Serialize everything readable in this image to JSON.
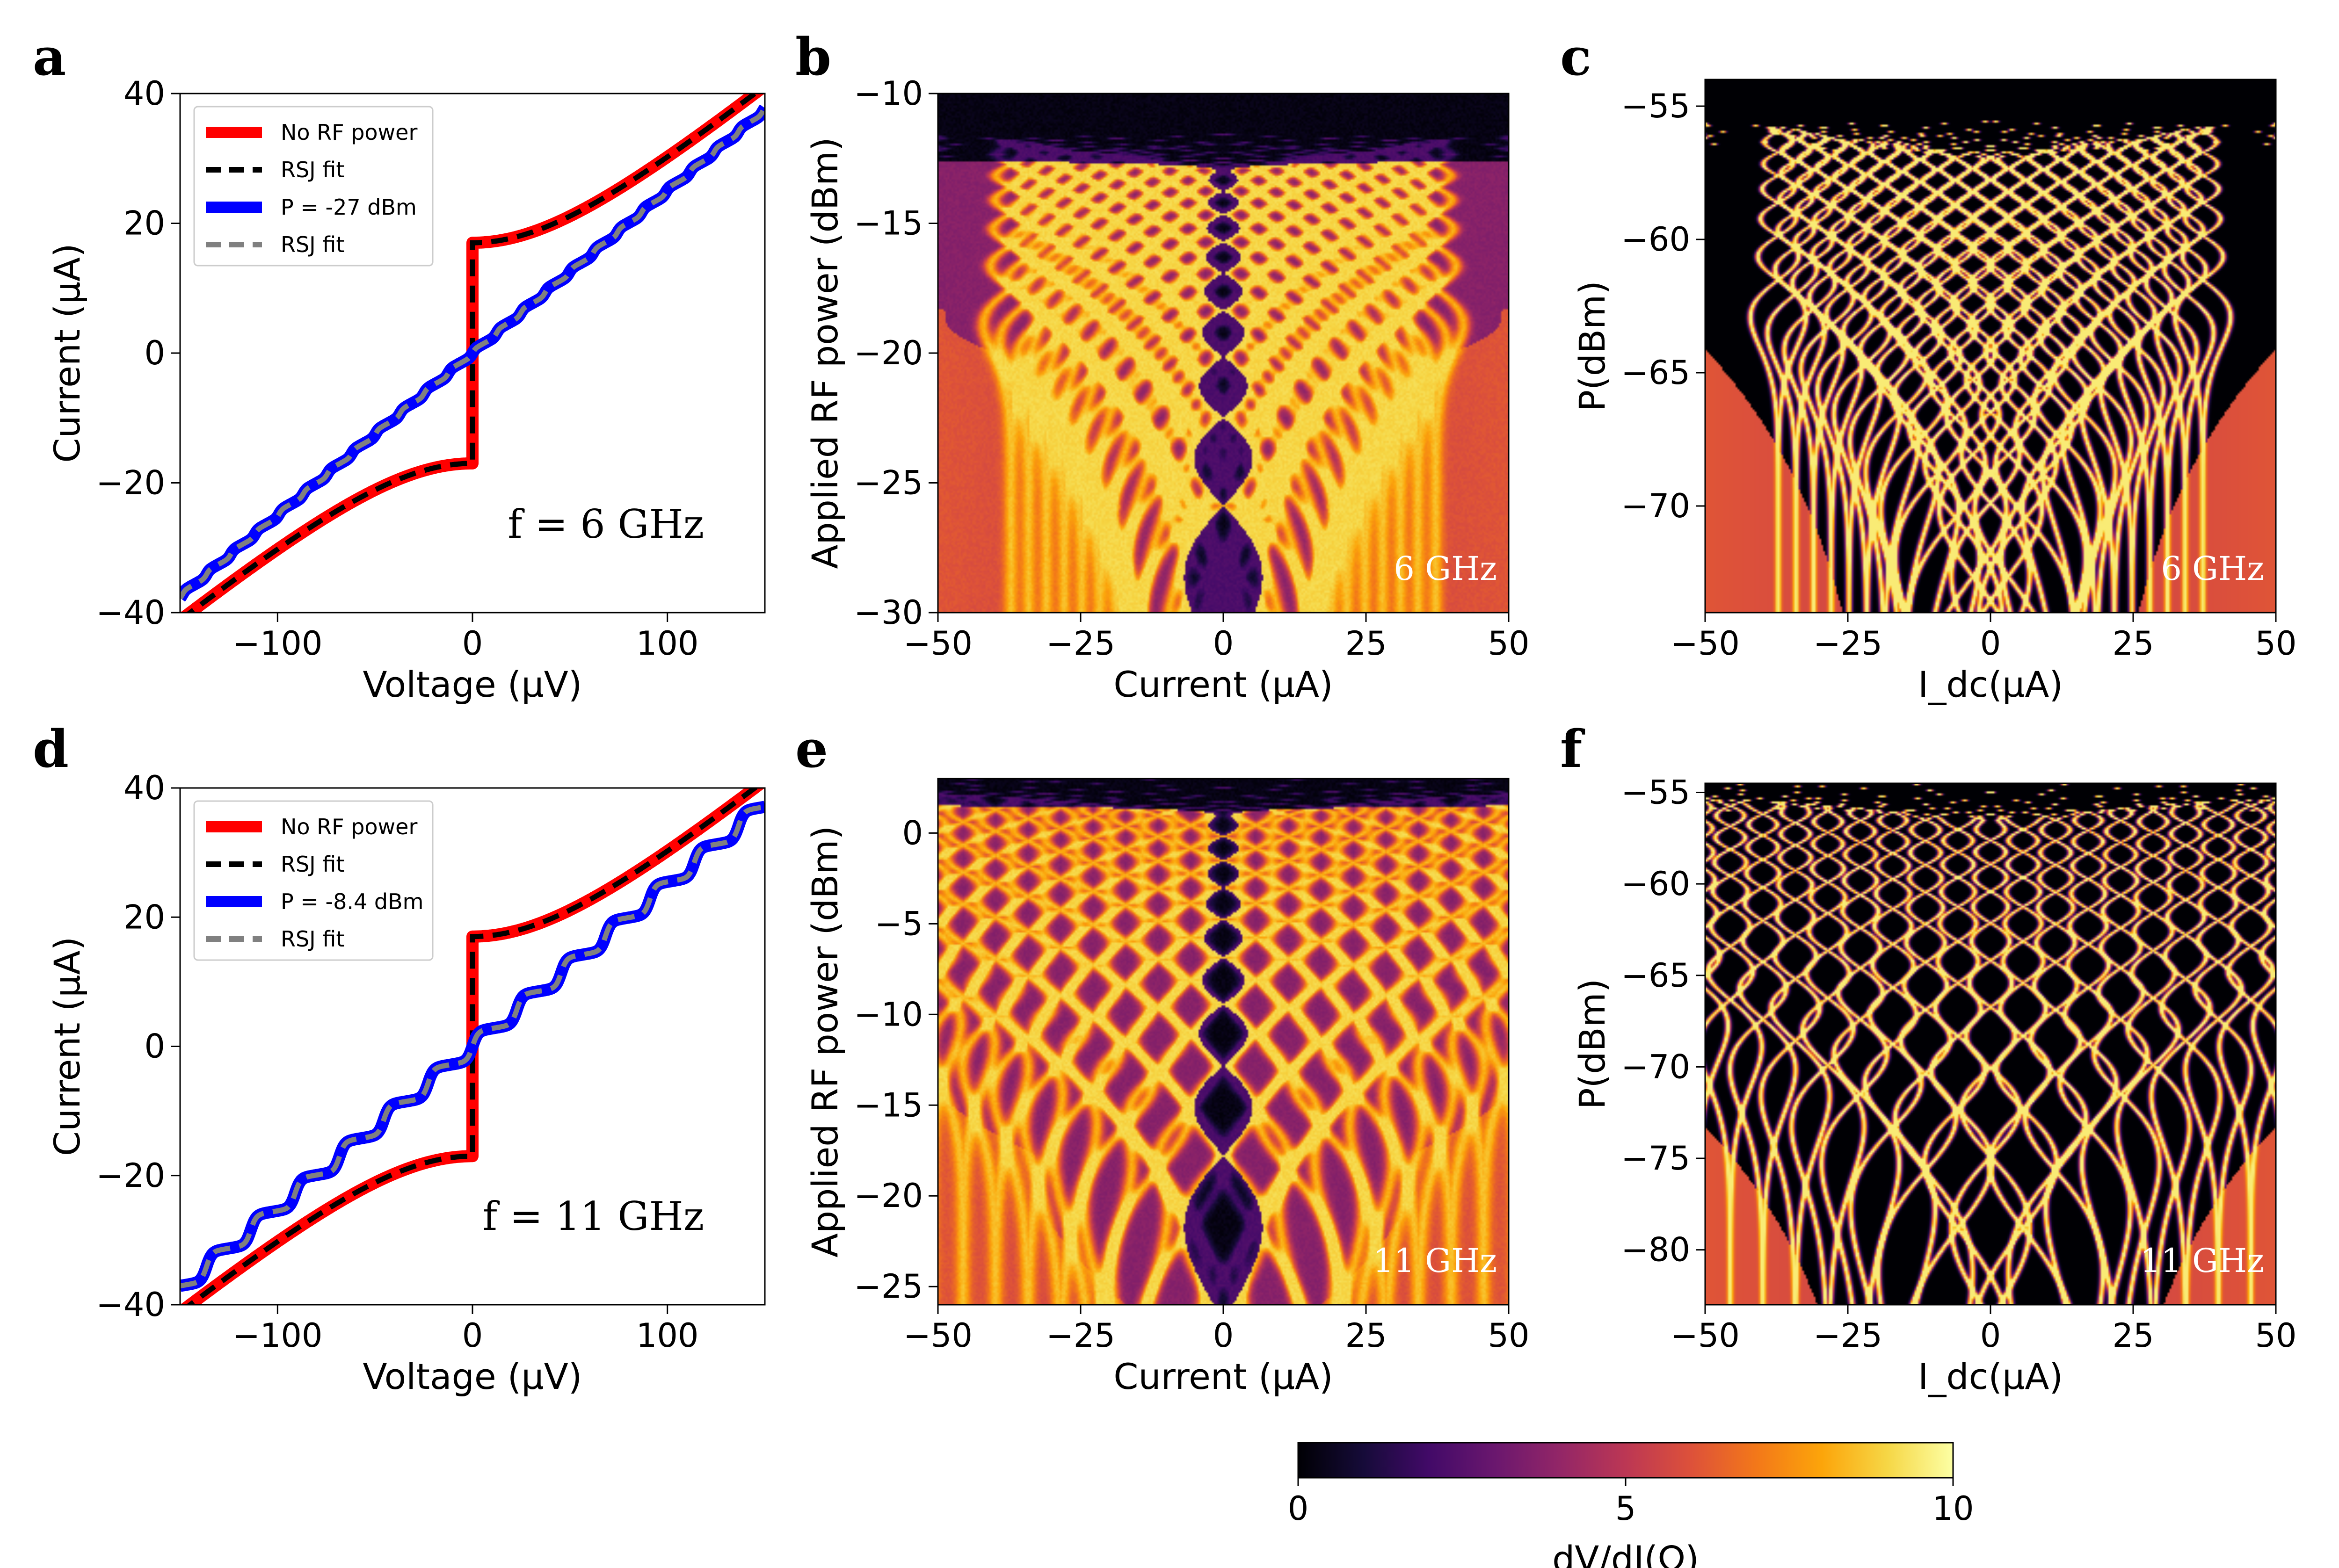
{
  "colorbar": {
    "label": "dV/dI(Ω)",
    "min": 0,
    "max": 10,
    "ticks": [
      "0",
      "5",
      "10"
    ]
  },
  "panels": [
    {
      "letter": "a",
      "type": "line",
      "xlabel": "Voltage (μV)",
      "ylabel": "Current (μA)",
      "xlim": [
        -150,
        150
      ],
      "ylim": [
        -40,
        40
      ],
      "xticks": [
        "−100",
        "0",
        "100"
      ],
      "yticks": [
        "40",
        "20",
        "0",
        "−20",
        "−40"
      ],
      "annotation": "f = 6 GHz",
      "legend": [
        "No RF power",
        "RSJ fit",
        "P = -27 dBm",
        "RSJ fit"
      ],
      "ic": 17,
      "rn": 4.0,
      "steps": "6GHz"
    },
    {
      "letter": "b",
      "type": "heatmap",
      "freq": "6 GHz",
      "xlabel": "Current (μA)",
      "ylabel": "Applied RF power (dBm)",
      "xlim": [
        -50,
        50
      ],
      "ylim": [
        -30,
        -10
      ],
      "xticks": [
        "−50",
        "−25",
        "0",
        "25",
        "50"
      ],
      "yticks": [
        "−10",
        "−15",
        "−20",
        "−25",
        "−30"
      ]
    },
    {
      "letter": "c",
      "type": "heatmap",
      "freq": "6 GHz",
      "xlabel": "I_dc(μA)",
      "ylabel": "P(dBm)",
      "xlim": [
        -50,
        50
      ],
      "ylim": [
        -74,
        -54
      ],
      "xticks": [
        "−50",
        "−25",
        "0",
        "25",
        "50"
      ],
      "yticks": [
        "−55",
        "−60",
        "−65",
        "−70"
      ]
    },
    {
      "letter": "d",
      "type": "line",
      "xlabel": "Voltage (μV)",
      "ylabel": "Current (μA)",
      "xlim": [
        -150,
        150
      ],
      "ylim": [
        -40,
        40
      ],
      "xticks": [
        "−100",
        "0",
        "100"
      ],
      "yticks": [
        "40",
        "20",
        "0",
        "−20",
        "−40"
      ],
      "annotation": "f = 11 GHz",
      "legend": [
        "No RF power",
        "RSJ fit",
        "P = -8.4 dBm",
        "RSJ fit"
      ],
      "ic": 17,
      "rn": 4.0,
      "steps": "11GHz"
    },
    {
      "letter": "e",
      "type": "heatmap",
      "freq": "11 GHz",
      "xlabel": "Current (μA)",
      "ylabel": "Applied RF power (dBm)",
      "xlim": [
        -50,
        50
      ],
      "ylim": [
        -26,
        3
      ],
      "xticks": [
        "−50",
        "−25",
        "0",
        "25",
        "50"
      ],
      "yticks": [
        "0",
        "−5",
        "−10",
        "−15",
        "−20",
        "−25"
      ]
    },
    {
      "letter": "f",
      "type": "heatmap",
      "freq": "11 GHz",
      "xlabel": "I_dc(μA)",
      "ylabel": "P(dBm)",
      "xlim": [
        -50,
        50
      ],
      "ylim": [
        -83,
        -54.5
      ],
      "xticks": [
        "−50",
        "−25",
        "0",
        "25",
        "50"
      ],
      "yticks": [
        "−55",
        "−60",
        "−65",
        "−70",
        "−75",
        "−80"
      ]
    }
  ],
  "chart_data": [
    {
      "type": "line",
      "title": "a",
      "xlabel": "Voltage (μV)",
      "ylabel": "Current (μA)",
      "xlim": [
        -150,
        150
      ],
      "ylim": [
        -40,
        40
      ],
      "series": [
        {
          "name": "No RF power",
          "color": "#ff0000",
          "x": [
            -150,
            -100,
            -50,
            -20,
            -5,
            0,
            5,
            20,
            50,
            100,
            150
          ],
          "y": [
            -36,
            -28,
            -22,
            -18.5,
            -17.2,
            0,
            17.2,
            18.5,
            22,
            28,
            36
          ]
        },
        {
          "name": "RSJ fit",
          "color": "#000000",
          "x": [
            -150,
            -100,
            -50,
            -20,
            -5,
            0,
            5,
            20,
            50,
            100,
            150
          ],
          "y": [
            -36,
            -28,
            -22,
            -18.5,
            -17.2,
            0,
            17.2,
            18.5,
            22,
            28,
            36
          ]
        },
        {
          "name": "P = -27 dBm",
          "color": "#0000ff",
          "x": [
            -150,
            -100,
            -50,
            -25,
            -12,
            0,
            12,
            25,
            50,
            100,
            150
          ],
          "y": [
            -38,
            -28,
            -20,
            -13,
            -6.5,
            0,
            6.5,
            13,
            20,
            28,
            38
          ]
        },
        {
          "name": "RSJ fit",
          "color": "#808080",
          "x": [
            -150,
            -100,
            -50,
            -25,
            -12,
            0,
            12,
            25,
            50,
            100,
            150
          ],
          "y": [
            -37,
            -28,
            -20,
            -13,
            -6.5,
            0,
            6.5,
            13,
            20,
            28,
            37
          ]
        }
      ]
    },
    {
      "type": "heatmap",
      "title": "b",
      "xlabel": "Current (μA)",
      "ylabel": "Applied RF power (dBm)",
      "xlim": [
        -50,
        50
      ],
      "ylim": [
        -30,
        -10
      ],
      "colorbar": [
        0,
        10
      ]
    },
    {
      "type": "heatmap",
      "title": "c",
      "xlabel": "I_dc(μA)",
      "ylabel": "P(dBm)",
      "xlim": [
        -50,
        50
      ],
      "ylim": [
        -74,
        -54
      ],
      "colorbar": [
        0,
        10
      ]
    },
    {
      "type": "line",
      "title": "d",
      "xlabel": "Voltage (μV)",
      "ylabel": "Current (μA)",
      "xlim": [
        -150,
        150
      ],
      "ylim": [
        -40,
        40
      ],
      "series": [
        {
          "name": "No RF power",
          "color": "#ff0000",
          "x": [
            -150,
            -100,
            -50,
            -20,
            -5,
            0,
            5,
            20,
            50,
            100,
            150
          ],
          "y": [
            -36,
            -28,
            -22,
            -18.5,
            -17.2,
            0,
            17.2,
            18.5,
            22,
            28,
            36
          ]
        },
        {
          "name": "RSJ fit",
          "color": "#000000",
          "x": [
            -150,
            -100,
            -50,
            -20,
            -5,
            0,
            5,
            20,
            50,
            100,
            150
          ],
          "y": [
            -36,
            -28,
            -22,
            -18.5,
            -17.2,
            0,
            17.2,
            18.5,
            22,
            28,
            36
          ]
        },
        {
          "name": "P = -8.4 dBm",
          "color": "#0000ff",
          "x": [
            -150,
            -90,
            -45,
            -20,
            0,
            20,
            45,
            90,
            150
          ],
          "y": [
            -37,
            -24,
            -13,
            -4,
            0,
            4,
            13,
            24,
            37
          ]
        },
        {
          "name": "RSJ fit",
          "color": "#808080",
          "x": [
            -150,
            -90,
            -45,
            -20,
            0,
            20,
            45,
            90,
            150
          ],
          "y": [
            -37,
            -24,
            -13,
            -4,
            0,
            4,
            13,
            24,
            37
          ]
        }
      ]
    },
    {
      "type": "heatmap",
      "title": "e",
      "xlabel": "Current (μA)",
      "ylabel": "Applied RF power (dBm)",
      "xlim": [
        -50,
        50
      ],
      "ylim": [
        -26,
        3
      ],
      "colorbar": [
        0,
        10
      ]
    },
    {
      "type": "heatmap",
      "title": "f",
      "xlabel": "I_dc(μA)",
      "ylabel": "P(dBm)",
      "xlim": [
        -50,
        50
      ],
      "ylim": [
        -83,
        -54.5
      ],
      "colorbar": [
        0,
        10
      ]
    }
  ]
}
